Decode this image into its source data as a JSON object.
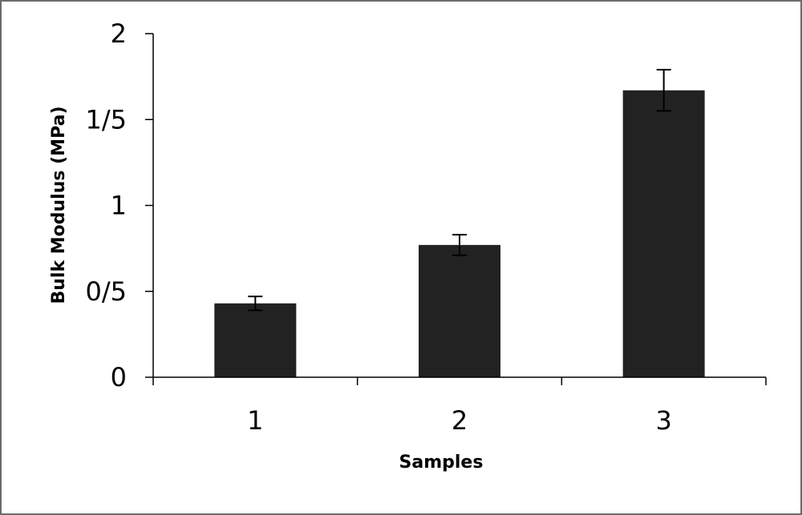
{
  "chart_data": {
    "type": "bar",
    "title": "",
    "xlabel": "Samples",
    "ylabel": "Bulk Modulus (MPa)",
    "categories": [
      "1",
      "2",
      "3"
    ],
    "values": [
      0.43,
      0.77,
      1.67
    ],
    "error": [
      0.04,
      0.06,
      0.12
    ],
    "ylim": [
      0,
      2
    ],
    "yticks": [
      0,
      0.5,
      1,
      1.5,
      2
    ],
    "ytick_labels": [
      "0",
      "0/5",
      "1",
      "1/5",
      "2"
    ],
    "grid": false,
    "legend": "none",
    "colors": {
      "bar": "#222222",
      "axis": "#000000",
      "frame": "#6b6b6b"
    }
  }
}
